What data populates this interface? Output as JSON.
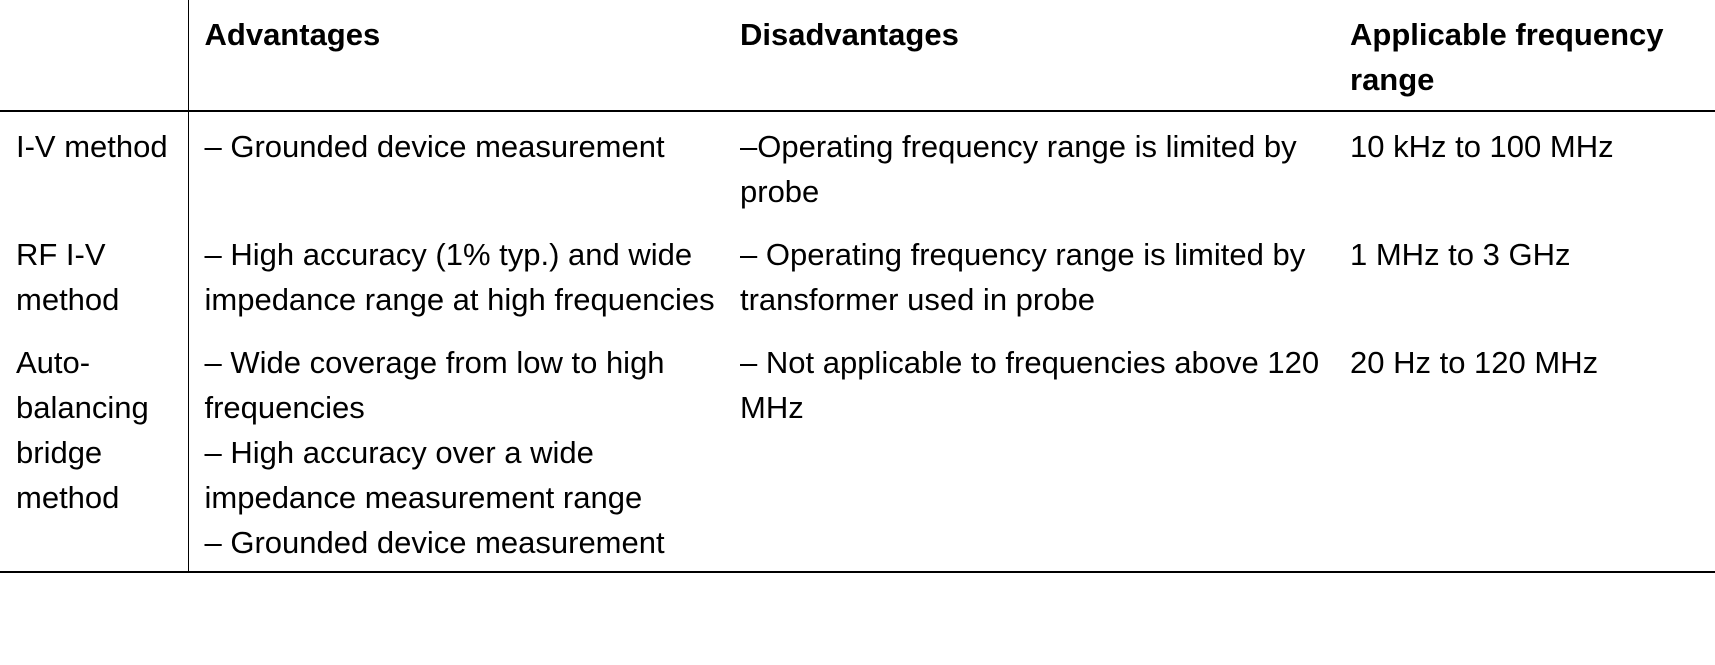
{
  "table": {
    "headers": {
      "method": "",
      "advantages": "Advantages",
      "disadvantages": "Disadvantages",
      "frequency": "Applicable frequency range"
    },
    "rows": [
      {
        "method": "I-V method",
        "advantages": [
          "– Grounded device measurement"
        ],
        "disadvantages": [
          "–Operating frequency range is limited by probe"
        ],
        "frequency": "10 kHz to 100 MHz"
      },
      {
        "method": "RF I-V method",
        "advantages": [
          "– High accuracy (1% typ.) and wide impedance range at high frequencies"
        ],
        "disadvantages": [
          "– Operating frequency range is limited by transformer used in probe"
        ],
        "frequency": "1 MHz to 3 GHz"
      },
      {
        "method": "Auto-balancing bridge method",
        "advantages": [
          "– Wide coverage from low to high frequencies",
          "– High accuracy over a wide impedance measurement range",
          "– Grounded device measurement"
        ],
        "disadvantages": [
          "– Not applicable to frequencies above 120 MHz"
        ],
        "frequency": "20 Hz to 120 MHz"
      }
    ]
  }
}
